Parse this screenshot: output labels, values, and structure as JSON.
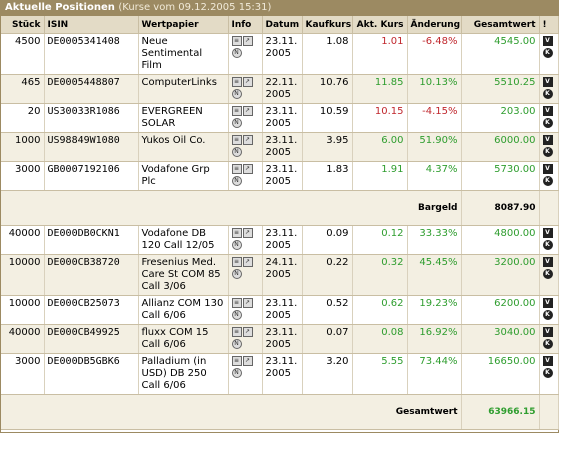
{
  "title": "Aktuelle Positionen",
  "subtitle": "(Kurse vom 09.12.2005 15:31)",
  "columns": [
    "Stück",
    "ISIN",
    "Wertpapier",
    "Info",
    "Datum",
    "Kaufkurs",
    "Akt. Kurs",
    "Änderung",
    "Gesamtwert",
    "!"
  ],
  "group1": [
    {
      "qty": "4500",
      "isin": "DE0005341408",
      "name": "Neue Sentimental Film",
      "date": "23.11. 2005",
      "buy": "1.08",
      "cur": "1.01",
      "chg": "-6.48%",
      "total": "4545.00",
      "dir": "neg"
    },
    {
      "qty": "465",
      "isin": "DE0005448807",
      "name": "ComputerLinks",
      "date": "22.11. 2005",
      "buy": "10.76",
      "cur": "11.85",
      "chg": "10.13%",
      "total": "5510.25",
      "dir": "pos"
    },
    {
      "qty": "20",
      "isin": "US30033R1086",
      "name": "EVERGREEN SOLAR",
      "date": "23.11. 2005",
      "buy": "10.59",
      "cur": "10.15",
      "chg": "-4.15%",
      "total": "203.00",
      "dir": "neg"
    },
    {
      "qty": "1000",
      "isin": "US98849W1080",
      "name": "Yukos Oil Co.",
      "date": "23.11. 2005",
      "buy": "3.95",
      "cur": "6.00",
      "chg": "51.90%",
      "total": "6000.00",
      "dir": "pos"
    },
    {
      "qty": "3000",
      "isin": "GB0007192106",
      "name": "Vodafone Grp Plc",
      "date": "23.11. 2005",
      "buy": "1.83",
      "cur": "1.91",
      "chg": "4.37%",
      "total": "5730.00",
      "dir": "pos"
    }
  ],
  "cash": {
    "label": "Bargeld",
    "value": "8087.90"
  },
  "group2": [
    {
      "qty": "40000",
      "isin": "DE000DB0CKN1",
      "name": "Vodafone DB 120 Call 12/05",
      "date": "23.11. 2005",
      "buy": "0.09",
      "cur": "0.12",
      "chg": "33.33%",
      "total": "4800.00",
      "dir": "pos"
    },
    {
      "qty": "10000",
      "isin": "DE000CB38720",
      "name": "Fresenius Med. Care St COM 85 Call 3/06",
      "date": "24.11. 2005",
      "buy": "0.22",
      "cur": "0.32",
      "chg": "45.45%",
      "total": "3200.00",
      "dir": "pos"
    },
    {
      "qty": "10000",
      "isin": "DE000CB25073",
      "name": "Allianz COM 130 Call 6/06",
      "date": "23.11. 2005",
      "buy": "0.52",
      "cur": "0.62",
      "chg": "19.23%",
      "total": "6200.00",
      "dir": "pos"
    },
    {
      "qty": "40000",
      "isin": "DE000CB49925",
      "name": "fluxx COM 15 Call 6/06",
      "date": "23.11. 2005",
      "buy": "0.07",
      "cur": "0.08",
      "chg": "16.92%",
      "total": "3040.00",
      "dir": "pos"
    },
    {
      "qty": "3000",
      "isin": "DE000DB5GBK6",
      "name": "Palladium (in USD) DB 250 Call 6/06",
      "date": "23.11. 2005",
      "buy": "3.20",
      "cur": "5.55",
      "chg": "73.44%",
      "total": "16650.00",
      "dir": "pos"
    }
  ],
  "grand_total": {
    "label": "Gesamtwert",
    "value": "63966.15"
  },
  "icon_names": {
    "info": "document-icon",
    "chart": "chart-icon",
    "news": "news-icon",
    "sell": "sell-icon",
    "note": "note-icon"
  }
}
